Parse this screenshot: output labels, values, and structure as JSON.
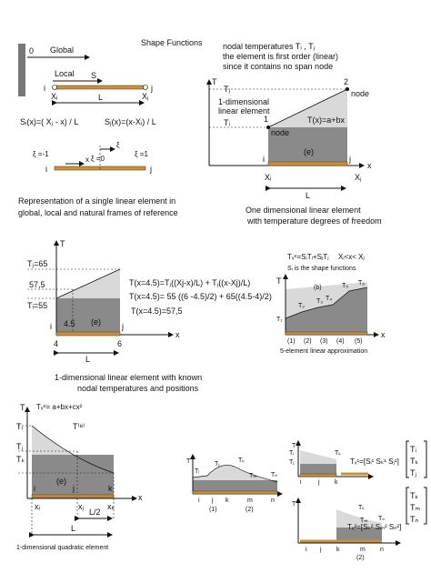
{
  "title": "Shape Functions",
  "p1": {
    "global": "Global",
    "origin": "0",
    "local": "Local",
    "s": "S",
    "i": "i",
    "j": "j",
    "xi": "Xᵢ",
    "xj": "Xⱼ",
    "L": "L",
    "si": "Sᵢ(x)=( Xⱼ - x) / L",
    "sj": "Sⱼ(x)=(x-Xᵢ) / L",
    "xim1": "ξ =-1",
    "xi0": "ξ =0",
    "xi1": "ξ =1",
    "xiaxis": "ξ",
    "x": "x",
    "i2": "i",
    "j2": "j",
    "caption": [
      "Representation of a single linear element in",
      "global, local and natural frames of reference"
    ]
  },
  "p2": {
    "notes": [
      "nodal temperatures Tᵢ , Tⱼ",
      "the element is first  order (linear)",
      "since it contains no span node"
    ],
    "T": "T",
    "tj": "Tⱼ",
    "ti": "Tᵢ",
    "n2": "2",
    "node2": "node",
    "desc": [
      "1-dimensional",
      "linear element"
    ],
    "eq": "T(x)=a+bx",
    "n1": "1",
    "node1": "node",
    "e": "(e)",
    "i": "i",
    "j": "j",
    "x": "x",
    "xi": "Xᵢ",
    "xj": "Xⱼ",
    "L": "L",
    "caption": [
      "One dimensional linear element",
      "with temperature degrees of freedom"
    ]
  },
  "p3": {
    "T": "T",
    "tj": "Tⱼ=65",
    "mid": "57,5",
    "ti": "Tᵢ=55",
    "eqs": [
      "T(x=4.5)=Tⱼ((Xj-x)/L) + Tⱼ((x-Xj)/L)",
      "T(x=4.5)= 55 ((6 -4.5)/2) + 65((4.5-4)/2)",
      "T(x=4.5)=57,5"
    ],
    "x45": "4.5",
    "e": "(e)",
    "i": "i",
    "j": "j",
    "x4": "4",
    "x6": "6",
    "x": "x",
    "L": "L"
  },
  "p4": {
    "eq": "Tₓᵉ=SᵢTᵢ+SⱼTⱼ",
    "range": "Xᵢ<x< Xⱼ",
    "note": "Sᵢ is the shape functions",
    "T": "T",
    "t": [
      "T₁",
      "T₂",
      "T₃",
      "T₄",
      "T₅",
      "T₆"
    ],
    "b": "(b)",
    "els": [
      "(1)",
      "(2)",
      "(3)",
      "(4)",
      "(5)"
    ],
    "x": "x",
    "caption": "5-element linear approximation"
  },
  "p5": {
    "head": [
      "1-dimensional linear element with known",
      "nodal temperatures and positions"
    ],
    "eq": "Tₓᵉ= a+bx+cx²",
    "T": "T",
    "ti": "Tᵢ",
    "te": "T⁽ᵉ⁾",
    "tj": "Tⱼ",
    "tk": "Tₖ",
    "e": "(e)",
    "i": "i",
    "j": "j",
    "k": "k",
    "xi": "xᵢ",
    "xj": "xⱼ",
    "xk": "xₖ",
    "x": "x",
    "half": "L/2",
    "L": "L",
    "caption": "1-dimensional quadratic element"
  },
  "p6": {
    "T": "T",
    "t": [
      "Tᵢ",
      "Tⱼ",
      "Tₖ",
      "Tₘ",
      "Tₙ"
    ],
    "n": [
      "i",
      "j",
      "k",
      "m",
      "n"
    ],
    "els": [
      "(1)",
      "(2)"
    ]
  },
  "p7": {
    "T": "T",
    "t": [
      "Tᵢ",
      "Tⱼ",
      "Tₖ"
    ],
    "n": [
      "i",
      "j",
      "k"
    ],
    "eq": "Tₓ¹=[Sᵢ¹ Sₖ¹ Sⱼ¹]",
    "vec": [
      "Tᵢ",
      "Tₖ",
      "Tⱼ"
    ],
    "T2": "T",
    "t2": [
      "Tₖ",
      "Tₘ",
      "Tₙ"
    ],
    "n2": [
      "i",
      "j",
      "k",
      "m",
      "n"
    ],
    "el": "(2)",
    "eq2": "Tₓ²=[Sₖ² Sₘ² Sₙ²]",
    "vec2": [
      "Tₖ",
      "Tₘ",
      "Tₙ"
    ]
  }
}
